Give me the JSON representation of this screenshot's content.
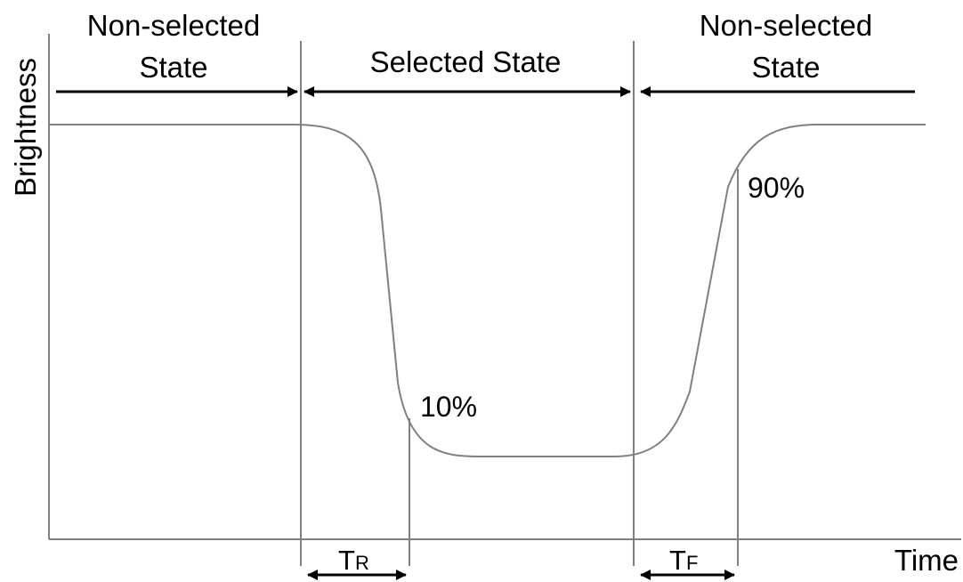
{
  "axes": {
    "y_label": "Brightness",
    "x_label": "Time"
  },
  "states": {
    "left": {
      "line1": "Non-selected",
      "line2": "State"
    },
    "middle": {
      "line1": "Selected State"
    },
    "right": {
      "line1": "Non-selected",
      "line2": "State"
    }
  },
  "annotations": {
    "low_percent": "10%",
    "high_percent": "90%"
  },
  "times": {
    "rise": {
      "symbol": "T",
      "subscript": "R"
    },
    "fall": {
      "symbol": "T",
      "subscript": "F"
    }
  },
  "colors": {
    "curve": "#808080",
    "lines": "#808080",
    "arrows": "#000000",
    "text": "#000000"
  }
}
